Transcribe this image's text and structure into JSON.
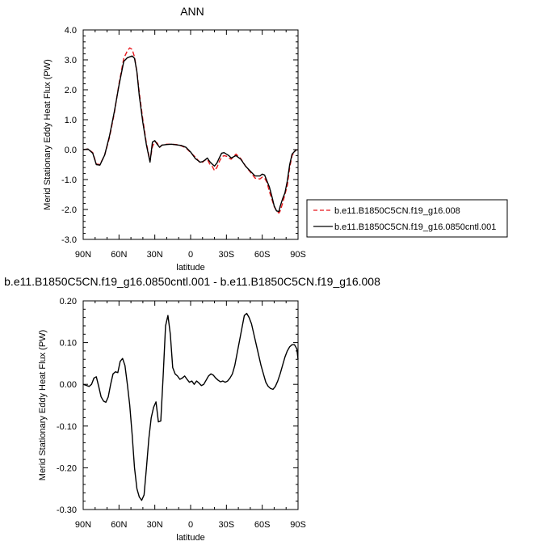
{
  "chart_data": [
    {
      "type": "line",
      "title": "ANN",
      "xlabel": "latitude",
      "ylabel": "Merid Stationary Eddy Heat Flux (PW)",
      "xlim": [
        90,
        -90
      ],
      "ylim": [
        -3.0,
        4.0
      ],
      "xticks": [
        {
          "v": 90,
          "label": "90N"
        },
        {
          "v": 60,
          "label": "60N"
        },
        {
          "v": 30,
          "label": "30N"
        },
        {
          "v": 0,
          "label": "0"
        },
        {
          "v": -30,
          "label": "30S"
        },
        {
          "v": -60,
          "label": "60S"
        },
        {
          "v": -90,
          "label": "90S"
        }
      ],
      "yticks": [
        {
          "v": 4.0,
          "label": "4.0"
        },
        {
          "v": 3.0,
          "label": "3.0"
        },
        {
          "v": 2.0,
          "label": "2.0"
        },
        {
          "v": 1.0,
          "label": "1.0"
        },
        {
          "v": 0.0,
          "label": "0.0"
        },
        {
          "v": -1.0,
          "label": "-1.0"
        },
        {
          "v": -2.0,
          "label": "-2.0"
        },
        {
          "v": -3.0,
          "label": "-3.0"
        }
      ],
      "legend_position": "right",
      "series": [
        {
          "name": "b.e11.B1850C5CN.f19_g16.008",
          "color": "#e8161b",
          "dash": "dashed",
          "x": [
            90,
            86,
            82,
            79,
            76,
            72,
            68,
            64,
            60,
            56,
            53,
            51,
            49,
            47,
            45,
            43,
            40,
            37,
            34,
            32,
            30,
            28,
            26,
            24,
            20,
            16,
            12,
            8,
            4,
            0,
            -4,
            -8,
            -10,
            -12,
            -14,
            -16,
            -18,
            -20,
            -22,
            -24,
            -26,
            -28,
            -30,
            -32,
            -34,
            -38,
            -42,
            -46,
            -50,
            -54,
            -58,
            -60,
            -62,
            -64,
            -66,
            -68,
            -70,
            -72,
            -74,
            -75,
            -77,
            -79,
            -81,
            -83,
            -85,
            -88,
            -90
          ],
          "y": [
            0.0,
            0.02,
            -0.1,
            -0.48,
            -0.5,
            -0.18,
            0.4,
            1.2,
            2.2,
            3.05,
            3.3,
            3.4,
            3.35,
            3.1,
            2.6,
            1.9,
            1.0,
            0.2,
            -0.38,
            0.1,
            0.27,
            0.22,
            0.08,
            0.15,
            0.18,
            0.18,
            0.17,
            0.13,
            0.06,
            -0.1,
            -0.25,
            -0.44,
            -0.42,
            -0.35,
            -0.32,
            -0.48,
            -0.55,
            -0.7,
            -0.6,
            -0.4,
            -0.25,
            -0.2,
            -0.22,
            -0.28,
            -0.32,
            -0.15,
            -0.3,
            -0.55,
            -0.75,
            -0.95,
            -0.98,
            -0.92,
            -0.95,
            -1.1,
            -1.4,
            -1.65,
            -1.9,
            -2.05,
            -2.12,
            -2.05,
            -1.8,
            -1.5,
            -1.2,
            -0.6,
            -0.2,
            -0.02,
            0.0
          ]
        },
        {
          "name": "b.e11.B1850C5CN.f19_g16.0850cntl.001",
          "color": "#000000",
          "dash": "solid",
          "x": [
            90,
            86,
            82,
            79,
            76,
            72,
            68,
            64,
            60,
            56,
            53,
            51,
            49,
            47,
            45,
            43,
            40,
            37,
            34,
            32,
            30,
            28,
            26,
            24,
            20,
            16,
            12,
            8,
            4,
            0,
            -4,
            -8,
            -10,
            -12,
            -14,
            -16,
            -18,
            -20,
            -22,
            -24,
            -26,
            -28,
            -30,
            -32,
            -34,
            -38,
            -42,
            -46,
            -50,
            -54,
            -58,
            -60,
            -62,
            -64,
            -66,
            -68,
            -70,
            -72,
            -74,
            -75,
            -77,
            -79,
            -81,
            -83,
            -85,
            -88,
            -90
          ],
          "y": [
            0.0,
            0.02,
            -0.12,
            -0.5,
            -0.52,
            -0.18,
            0.45,
            1.25,
            2.15,
            2.95,
            3.07,
            3.1,
            3.13,
            3.05,
            2.6,
            1.8,
            0.9,
            0.15,
            -0.42,
            0.25,
            0.3,
            0.18,
            0.08,
            0.15,
            0.17,
            0.18,
            0.16,
            0.14,
            0.08,
            -0.08,
            -0.3,
            -0.42,
            -0.4,
            -0.35,
            -0.28,
            -0.4,
            -0.48,
            -0.55,
            -0.45,
            -0.28,
            -0.12,
            -0.1,
            -0.15,
            -0.2,
            -0.28,
            -0.2,
            -0.32,
            -0.55,
            -0.72,
            -0.88,
            -0.88,
            -0.82,
            -0.85,
            -1.05,
            -1.25,
            -1.55,
            -1.88,
            -2.05,
            -2.07,
            -1.9,
            -1.65,
            -1.45,
            -1.05,
            -0.5,
            -0.15,
            -0.02,
            0.0
          ]
        }
      ]
    },
    {
      "type": "line",
      "title": "b.e11.B1850C5CN.f19_g16.0850cntl.001 - b.e11.B1850C5CN.f19_g16.008",
      "xlabel": "latitude",
      "ylabel": "Merid Stationary Eddy Heat Flux (PW)",
      "xlim": [
        90,
        -90
      ],
      "ylim": [
        -0.3,
        0.2
      ],
      "xticks": [
        {
          "v": 90,
          "label": "90N"
        },
        {
          "v": 60,
          "label": "60N"
        },
        {
          "v": 30,
          "label": "30N"
        },
        {
          "v": 0,
          "label": "0"
        },
        {
          "v": -30,
          "label": "30S"
        },
        {
          "v": -60,
          "label": "60S"
        },
        {
          "v": -90,
          "label": "90S"
        }
      ],
      "yticks": [
        {
          "v": 0.2,
          "label": "0.20"
        },
        {
          "v": 0.1,
          "label": "0.10"
        },
        {
          "v": 0.0,
          "label": "0.00"
        },
        {
          "v": -0.1,
          "label": "-0.10"
        },
        {
          "v": -0.2,
          "label": "-0.20"
        },
        {
          "v": -0.3,
          "label": "-0.30"
        }
      ],
      "series": [
        {
          "color": "#000000",
          "dash": "solid",
          "x": [
            90,
            87,
            85,
            83,
            81,
            79,
            77,
            75,
            73,
            71,
            69,
            67,
            65,
            63,
            61,
            59,
            57,
            55,
            53,
            51,
            49,
            47,
            45,
            43,
            41,
            39,
            37,
            35,
            33,
            31,
            29,
            27,
            25,
            23,
            21,
            19,
            17,
            15,
            13,
            11,
            9,
            7,
            5,
            3,
            1,
            -1,
            -3,
            -5,
            -7,
            -9,
            -11,
            -13,
            -15,
            -17,
            -19,
            -21,
            -23,
            -25,
            -27,
            -29,
            -31,
            -33,
            -35,
            -37,
            -39,
            -41,
            -43,
            -45,
            -47,
            -49,
            -51,
            -53,
            -55,
            -57,
            -59,
            -61,
            -63,
            -65,
            -67,
            -69,
            -71,
            -73,
            -75,
            -77,
            -79,
            -81,
            -83,
            -85,
            -87,
            -89,
            -90
          ],
          "y": [
            0.0,
            -0.003,
            -0.005,
            0.0,
            0.015,
            0.018,
            -0.005,
            -0.03,
            -0.04,
            -0.043,
            -0.03,
            0.0,
            0.025,
            0.03,
            0.028,
            0.055,
            0.062,
            0.045,
            0.0,
            -0.05,
            -0.12,
            -0.2,
            -0.25,
            -0.27,
            -0.278,
            -0.265,
            -0.2,
            -0.13,
            -0.08,
            -0.055,
            -0.042,
            -0.09,
            -0.088,
            0.02,
            0.14,
            0.165,
            0.12,
            0.04,
            0.025,
            0.02,
            0.012,
            0.015,
            0.02,
            0.012,
            0.005,
            0.008,
            0.0,
            0.008,
            0.003,
            -0.003,
            0.0,
            0.01,
            0.02,
            0.025,
            0.022,
            0.015,
            0.01,
            0.006,
            0.008,
            0.005,
            0.008,
            0.015,
            0.025,
            0.045,
            0.075,
            0.105,
            0.135,
            0.165,
            0.17,
            0.16,
            0.145,
            0.12,
            0.095,
            0.07,
            0.045,
            0.025,
            0.005,
            -0.005,
            -0.01,
            -0.012,
            -0.005,
            0.008,
            0.025,
            0.045,
            0.065,
            0.08,
            0.09,
            0.095,
            0.095,
            0.085,
            0.06
          ]
        }
      ]
    }
  ]
}
